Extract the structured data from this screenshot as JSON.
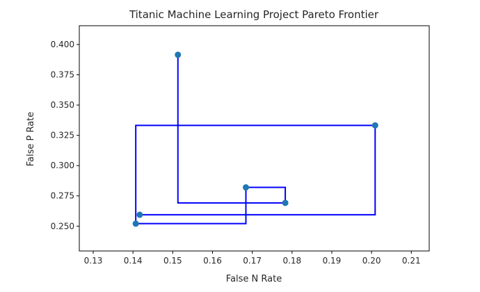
{
  "chart_data": {
    "type": "scatter",
    "title": "Titanic Machine Learning Project Pareto Frontier",
    "xlabel": "False N Rate",
    "ylabel": "False P Rate",
    "xlim": [
      0.1265,
      0.2145
    ],
    "ylim": [
      0.2295,
      0.4155
    ],
    "xticks": [
      0.13,
      0.14,
      0.15,
      0.16,
      0.17,
      0.18,
      0.19,
      0.2,
      0.21
    ],
    "xtick_labels": [
      "0.13",
      "0.14",
      "0.15",
      "0.16",
      "0.17",
      "0.18",
      "0.19",
      "0.20",
      "0.21"
    ],
    "yticks": [
      0.25,
      0.275,
      0.3,
      0.325,
      0.35,
      0.375,
      0.4
    ],
    "ytick_labels": [
      "0.250",
      "0.275",
      "0.300",
      "0.325",
      "0.350",
      "0.375",
      "0.400"
    ],
    "grid": false,
    "colors": {
      "points": "#1f77b4",
      "line": "#0000ff"
    },
    "points": [
      {
        "x": 0.1513,
        "y": 0.3915
      },
      {
        "x": 0.2009,
        "y": 0.3332
      },
      {
        "x": 0.1783,
        "y": 0.2692
      },
      {
        "x": 0.1684,
        "y": 0.282
      },
      {
        "x": 0.1417,
        "y": 0.2594
      },
      {
        "x": 0.1407,
        "y": 0.2521
      }
    ],
    "step_line": [
      [
        0.1513,
        0.3915
      ],
      [
        0.1513,
        0.2692
      ],
      [
        0.1783,
        0.2692
      ],
      [
        0.1783,
        0.282
      ],
      [
        0.1684,
        0.282
      ],
      [
        0.1684,
        0.2521
      ],
      [
        0.1407,
        0.2521
      ],
      [
        0.1407,
        0.3332
      ],
      [
        0.2009,
        0.3332
      ],
      [
        0.2009,
        0.2594
      ],
      [
        0.1417,
        0.2594
      ],
      [
        0.1417,
        0.2594
      ]
    ]
  }
}
